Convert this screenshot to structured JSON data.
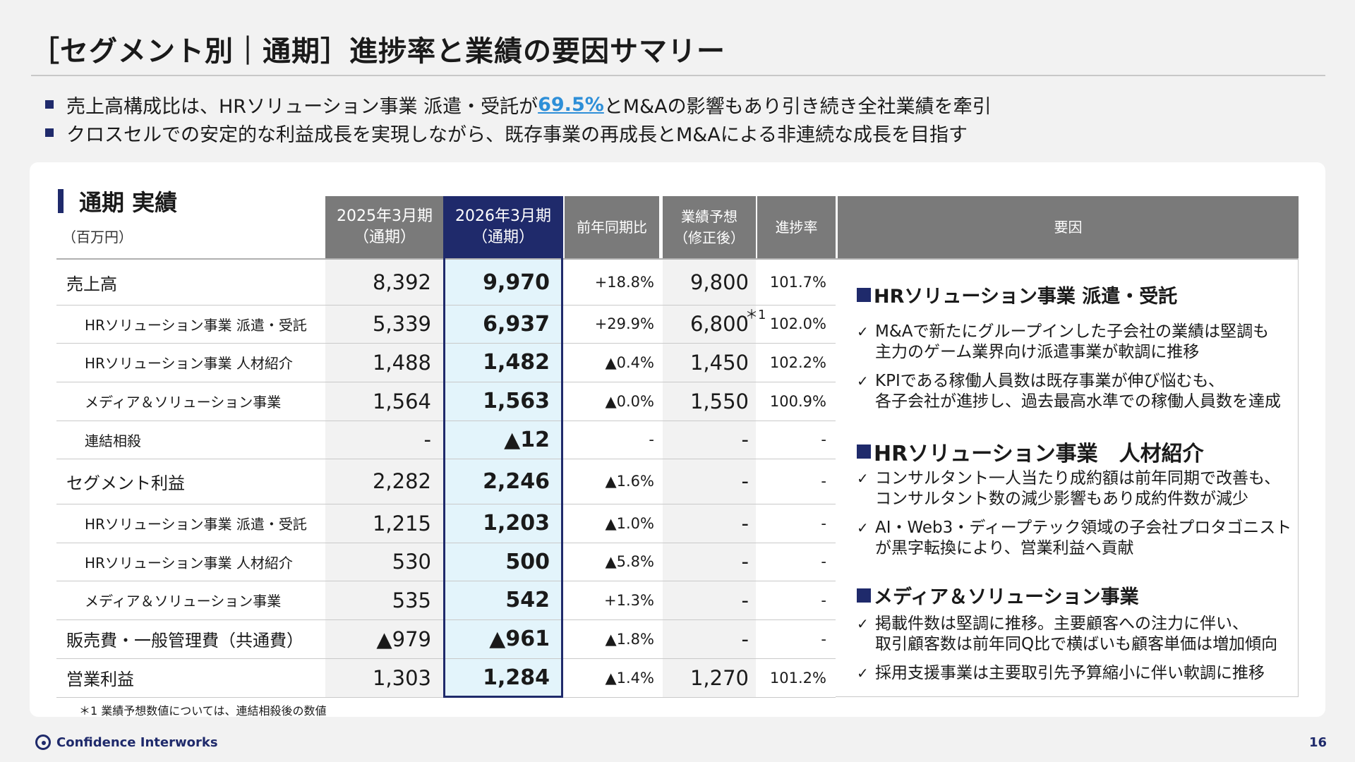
{
  "title": "［セグメント別｜通期］進捗率と業績の要因サマリー",
  "bullets": [
    {
      "before": "売上高構成比は、HRソリューション事業 派遣・受託が",
      "highlight": "69.5%",
      "after": "とM&Aの影響もあり引き続き全社業績を牽引"
    },
    {
      "before": "クロスセルでの安定的な利益成長を実現しながら、既存事業の再成長とM&Aによる非連続な成長を目指す",
      "highlight": "",
      "after": ""
    }
  ],
  "section": {
    "title": "通期 実績",
    "unit": "（百万円）"
  },
  "columns": {
    "prev": "2025年3月期\n（通期）",
    "cur": "2026年3月期\n（通期）",
    "yoy": "前年同期比",
    "forecast": "業績予想\n（修正後）",
    "progress": "進捗率",
    "factors": "要因"
  },
  "rows": [
    {
      "label": "売上高",
      "prev": "8,392",
      "cur": "9,970",
      "yoy": "+18.8%",
      "forecast": "9,800",
      "progress": "101.7%"
    },
    {
      "label": "HRソリューション事業 派遣・受託",
      "prev": "5,339",
      "cur": "6,937",
      "yoy": "+29.9%",
      "forecast": "6,800",
      "progress": "102.0%"
    },
    {
      "label": "HRソリューション事業 人材紹介",
      "prev": "1,488",
      "cur": "1,482",
      "yoy": "▲0.4%",
      "forecast": "1,450",
      "progress": "102.2%"
    },
    {
      "label": "メディア＆ソリューション事業",
      "prev": "1,564",
      "cur": "1,563",
      "yoy": "▲0.0%",
      "forecast": "1,550",
      "progress": "100.9%"
    },
    {
      "label": "連結相殺",
      "prev": "-",
      "cur": "▲12",
      "yoy": "-",
      "forecast": "-",
      "progress": "-"
    },
    {
      "label": "セグメント利益",
      "prev": "2,282",
      "cur": "2,246",
      "yoy": "▲1.6%",
      "forecast": "-",
      "progress": "-"
    },
    {
      "label": "HRソリューション事業 派遣・受託",
      "prev": "1,215",
      "cur": "1,203",
      "yoy": "▲1.0%",
      "forecast": "-",
      "progress": "-"
    },
    {
      "label": "HRソリューション事業 人材紹介",
      "prev": "530",
      "cur": "500",
      "yoy": "▲5.8%",
      "forecast": "-",
      "progress": "-"
    },
    {
      "label": "メディア＆ソリューション事業",
      "prev": "535",
      "cur": "542",
      "yoy": "+1.3%",
      "forecast": "-",
      "progress": "-"
    },
    {
      "label": "販売費・一般管理費（共通費）",
      "prev": "▲979",
      "cur": "▲961",
      "yoy": "▲1.8%",
      "forecast": "-",
      "progress": "-"
    },
    {
      "label": "営業利益",
      "prev": "1,303",
      "cur": "1,284",
      "yoy": "▲1.4%",
      "forecast": "1,270",
      "progress": "101.2%"
    }
  ],
  "note_mark": "＊1",
  "footnote": "＊1 業績予想数値については、連結相殺後の数値",
  "factors": [
    {
      "title": "HRソリューション事業 派遣・受託",
      "items": [
        [
          "M&Aで新たにグループインした子会社の業績は堅調も",
          "主力のゲーム業界向け派遣事業が軟調に推移"
        ],
        [
          "KPIである稼働人員数は既存事業が伸び悩むも、",
          "各子会社が進捗し、過去最高水準での稼働人員数を達成"
        ]
      ]
    },
    {
      "title": "HRソリューション事業　人材紹介",
      "items": [
        [
          "コンサルタント一人当たり成約額は前年同期で改善も、",
          "コンサルタント数の減少影響もあり成約件数が減少"
        ],
        [
          "AI・Web3・ディープテック領域の子会社プロタゴニスト",
          "が黒字転換により、営業利益へ貢献"
        ]
      ]
    },
    {
      "title": "メディア＆ソリューション事業",
      "items": [
        [
          "掲載件数は堅調に推移。主要顧客への注力に伴い、",
          "取引顧客数は前年同Q比で横ばいも顧客単価は増加傾向"
        ],
        [
          "採用支援事業は主要取引先予算縮小に伴い軟調に推移"
        ]
      ]
    }
  ],
  "footer": {
    "company": "Confidence Interworks",
    "page": "16"
  },
  "colors": {
    "navy": "#1f2a6b",
    "header_gray": "#7a7a7a",
    "highlight_blue": "#2e8fd8",
    "current_bg": "#e3f4fb"
  }
}
